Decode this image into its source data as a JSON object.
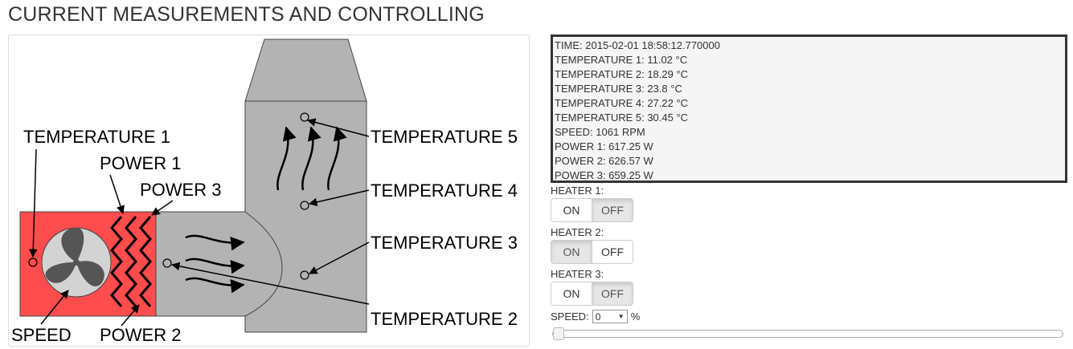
{
  "page": {
    "title": "CURRENT MEASUREMENTS AND CONTROLLING"
  },
  "diagram": {
    "labels": {
      "temperature_1": "TEMPERATURE 1",
      "temperature_2": "TEMPERATURE 2",
      "temperature_3": "TEMPERATURE 3",
      "temperature_4": "TEMPERATURE 4",
      "temperature_5": "TEMPERATURE 5",
      "power_1": "POWER 1",
      "power_2": "POWER 2",
      "power_3": "POWER 3",
      "speed": "SPEED"
    },
    "colors": {
      "heater_zone": "#ff4d4d",
      "duct": "#b3b3b3",
      "fan_disc": "#d3d3d3",
      "fan_blade": "#555555"
    }
  },
  "readout": {
    "lines": [
      "TIME: 2015-02-01 18:58:12.770000",
      "TEMPERATURE 1: 11.02 °C",
      "TEMPERATURE 2: 18.29 °C",
      "TEMPERATURE 3: 23.8 °C",
      "TEMPERATURE 4: 27.22 °C",
      "TEMPERATURE 5: 30.45 °C",
      "SPEED: 1061 RPM",
      "POWER 1: 617.25 W",
      "POWER 2: 626.57 W",
      "POWER 3: 659.25 W"
    ]
  },
  "controls": {
    "heaters": [
      {
        "label": "HEATER 1:",
        "on_label": "ON",
        "off_label": "OFF",
        "state": "off"
      },
      {
        "label": "HEATER 2:",
        "on_label": "ON",
        "off_label": "OFF",
        "state": "on"
      },
      {
        "label": "HEATER 3:",
        "on_label": "ON",
        "off_label": "OFF",
        "state": "off"
      }
    ],
    "speed": {
      "label": "SPEED:",
      "value": "0",
      "unit": "%",
      "slider_fraction": 0
    }
  }
}
